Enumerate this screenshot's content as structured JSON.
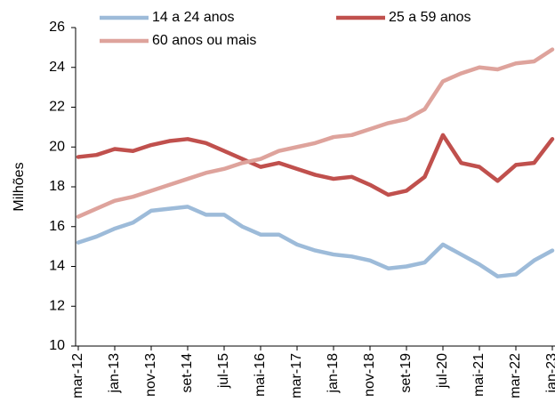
{
  "chart_data": {
    "type": "line",
    "y_label": "Milhões",
    "categories": [
      "mar-12",
      null,
      "jan-13",
      null,
      "nov-13",
      null,
      "set-14",
      null,
      "jul-15",
      null,
      "mai-16",
      null,
      "mar-17",
      null,
      "jan-18",
      null,
      "nov-18",
      null,
      "set-19",
      null,
      "jul-20",
      null,
      "mai-21",
      null,
      "mar-22",
      null,
      "jan-23"
    ],
    "series": [
      {
        "name": "14 a 24 anos",
        "color": "#9dbbd9",
        "values": [
          15.2,
          15.5,
          15.9,
          16.2,
          16.8,
          16.9,
          17.0,
          16.6,
          16.6,
          16.0,
          15.6,
          15.6,
          15.1,
          14.8,
          14.6,
          14.5,
          14.3,
          13.9,
          14.0,
          14.2,
          15.1,
          14.6,
          14.1,
          13.5,
          13.6,
          14.3,
          14.8
        ]
      },
      {
        "name": "25 a 59 anos",
        "color": "#c0504d",
        "values": [
          19.5,
          19.6,
          19.9,
          19.8,
          20.1,
          20.3,
          20.4,
          20.2,
          19.8,
          19.4,
          19.0,
          19.2,
          18.9,
          18.6,
          18.4,
          18.5,
          18.1,
          17.6,
          17.8,
          18.5,
          20.6,
          19.2,
          19.0,
          18.3,
          19.1,
          19.2,
          20.4
        ]
      },
      {
        "name": "60 anos ou mais",
        "color": "#dea39c",
        "values": [
          16.5,
          16.9,
          17.3,
          17.5,
          17.8,
          18.1,
          18.4,
          18.7,
          18.9,
          19.2,
          19.4,
          19.8,
          20.0,
          20.2,
          20.5,
          20.6,
          20.9,
          21.2,
          21.4,
          21.9,
          23.3,
          23.7,
          24.0,
          23.9,
          24.2,
          24.3,
          24.9
        ]
      }
    ],
    "ylim": [
      10,
      26
    ],
    "yticks": [
      10,
      12,
      14,
      16,
      18,
      20,
      22,
      24,
      26
    ],
    "grid": false
  }
}
